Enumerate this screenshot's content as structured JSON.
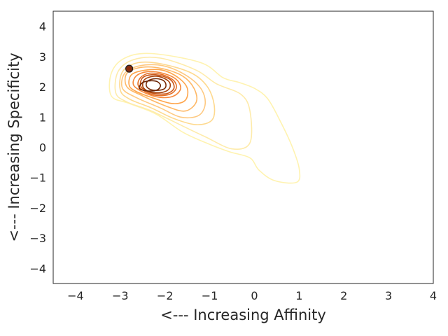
{
  "chart_data": {
    "type": "contour",
    "title": "",
    "xlabel": "<--- Increasing Affinity",
    "ylabel": "<--- Increasing Specificity",
    "xlim": [
      -4.5,
      4.0
    ],
    "ylim": [
      -4.5,
      4.5
    ],
    "xticks": [
      -4,
      -3,
      -2,
      -1,
      0,
      1,
      2,
      3,
      4
    ],
    "yticks": [
      -4,
      -3,
      -2,
      -1,
      0,
      1,
      2,
      3,
      4
    ],
    "xtick_labels": [
      "−4",
      "−3",
      "−2",
      "−1",
      "0",
      "1",
      "2",
      "3",
      "4"
    ],
    "ytick_labels": [
      "−4",
      "−3",
      "−2",
      "−1",
      "0",
      "1",
      "2",
      "3",
      "4"
    ],
    "grid": false,
    "colormap": "YlOrBr",
    "density_mode": [
      -2.38,
      2.03
    ],
    "levels": [
      {
        "level": 1,
        "color": "#fff3b0",
        "points": [
          [
            -3.2,
            1.7
          ],
          [
            -3.2,
            2.45
          ],
          [
            -2.9,
            2.95
          ],
          [
            -2.3,
            3.1
          ],
          [
            -1.2,
            2.8
          ],
          [
            -0.7,
            2.3
          ],
          [
            -0.35,
            2.15
          ],
          [
            0.0,
            1.95
          ],
          [
            0.3,
            1.6
          ],
          [
            0.6,
            0.8
          ],
          [
            0.85,
            0.0
          ],
          [
            1.0,
            -0.7
          ],
          [
            0.95,
            -1.15
          ],
          [
            0.45,
            -1.1
          ],
          [
            0.1,
            -0.75
          ],
          [
            -0.1,
            -0.35
          ],
          [
            -0.55,
            -0.15
          ],
          [
            -1.0,
            0.1
          ],
          [
            -1.6,
            0.5
          ],
          [
            -2.2,
            1.1
          ],
          [
            -2.8,
            1.45
          ]
        ]
      },
      {
        "level": 2,
        "color": "#feebaa",
        "points": [
          [
            -3.1,
            1.8
          ],
          [
            -3.05,
            2.5
          ],
          [
            -2.7,
            2.9
          ],
          [
            -2.1,
            2.95
          ],
          [
            -1.3,
            2.55
          ],
          [
            -0.85,
            2.1
          ],
          [
            -0.3,
            1.75
          ],
          [
            -0.1,
            1.2
          ],
          [
            -0.1,
            0.15
          ],
          [
            -0.5,
            -0.05
          ],
          [
            -1.1,
            0.35
          ],
          [
            -1.6,
            0.7
          ],
          [
            -2.3,
            1.2
          ],
          [
            -2.85,
            1.5
          ]
        ]
      },
      {
        "level": 3,
        "color": "#fed98e",
        "points": [
          [
            -3.0,
            1.9
          ],
          [
            -2.95,
            2.5
          ],
          [
            -2.6,
            2.8
          ],
          [
            -2.05,
            2.75
          ],
          [
            -1.4,
            2.45
          ],
          [
            -1.05,
            2.0
          ],
          [
            -0.9,
            1.4
          ],
          [
            -0.95,
            0.9
          ],
          [
            -1.3,
            0.75
          ],
          [
            -1.8,
            0.95
          ],
          [
            -2.3,
            1.3
          ],
          [
            -2.8,
            1.6
          ]
        ]
      },
      {
        "level": 4,
        "color": "#fec981",
        "points": [
          [
            -2.95,
            1.95
          ],
          [
            -2.9,
            2.45
          ],
          [
            -2.55,
            2.7
          ],
          [
            -2.05,
            2.7
          ],
          [
            -1.55,
            2.4
          ],
          [
            -1.2,
            1.95
          ],
          [
            -1.1,
            1.45
          ],
          [
            -1.25,
            1.05
          ],
          [
            -1.65,
            1.0
          ],
          [
            -2.1,
            1.3
          ],
          [
            -2.65,
            1.65
          ]
        ]
      },
      {
        "level": 5,
        "color": "#feb866",
        "points": [
          [
            -2.85,
            2.0
          ],
          [
            -2.85,
            2.45
          ],
          [
            -2.5,
            2.65
          ],
          [
            -2.05,
            2.6
          ],
          [
            -1.6,
            2.35
          ],
          [
            -1.35,
            1.95
          ],
          [
            -1.3,
            1.5
          ],
          [
            -1.55,
            1.2
          ],
          [
            -1.95,
            1.35
          ],
          [
            -2.5,
            1.7
          ]
        ]
      },
      {
        "level": 6,
        "color": "#fea54b",
        "points": [
          [
            -2.8,
            2.05
          ],
          [
            -2.75,
            2.4
          ],
          [
            -2.45,
            2.55
          ],
          [
            -2.05,
            2.55
          ],
          [
            -1.7,
            2.3
          ],
          [
            -1.5,
            1.95
          ],
          [
            -1.55,
            1.55
          ],
          [
            -1.85,
            1.45
          ],
          [
            -2.3,
            1.65
          ],
          [
            -2.65,
            1.85
          ]
        ]
      },
      {
        "level": 7,
        "color": "#f6883a",
        "points": [
          [
            -2.7,
            2.05
          ],
          [
            -2.65,
            2.35
          ],
          [
            -2.4,
            2.5
          ],
          [
            -2.05,
            2.45
          ],
          [
            -1.75,
            2.25
          ],
          [
            -1.65,
            1.95
          ],
          [
            -1.8,
            1.7
          ],
          [
            -2.1,
            1.65
          ],
          [
            -2.45,
            1.8
          ]
        ]
      },
      {
        "level": 8,
        "color": "#e46f26",
        "points": [
          [
            -2.6,
            2.05
          ],
          [
            -2.55,
            2.3
          ],
          [
            -2.35,
            2.45
          ],
          [
            -2.05,
            2.4
          ],
          [
            -1.8,
            2.2
          ],
          [
            -1.75,
            1.95
          ],
          [
            -1.9,
            1.75
          ],
          [
            -2.2,
            1.72
          ],
          [
            -2.45,
            1.85
          ]
        ]
      },
      {
        "level": 9,
        "color": "#c95618",
        "points": [
          [
            -2.55,
            2.05
          ],
          [
            -2.5,
            2.3
          ],
          [
            -2.3,
            2.4
          ],
          [
            -2.05,
            2.35
          ],
          [
            -1.85,
            2.2
          ],
          [
            -1.8,
            1.95
          ],
          [
            -1.95,
            1.78
          ],
          [
            -2.25,
            1.78
          ],
          [
            -2.45,
            1.9
          ]
        ]
      },
      {
        "level": 10,
        "color": "#a6420d",
        "points": [
          [
            -2.5,
            2.05
          ],
          [
            -2.45,
            2.25
          ],
          [
            -2.25,
            2.35
          ],
          [
            -2.05,
            2.3
          ],
          [
            -1.9,
            2.15
          ],
          [
            -1.9,
            1.95
          ],
          [
            -2.05,
            1.82
          ],
          [
            -2.3,
            1.82
          ],
          [
            -2.45,
            1.92
          ]
        ]
      },
      {
        "level": 11,
        "color": "#7a2b06",
        "points": [
          [
            -2.42,
            2.05
          ],
          [
            -2.38,
            2.2
          ],
          [
            -2.22,
            2.27
          ],
          [
            -2.05,
            2.22
          ],
          [
            -1.98,
            2.08
          ],
          [
            -2.02,
            1.93
          ],
          [
            -2.2,
            1.88
          ],
          [
            -2.35,
            1.93
          ]
        ]
      },
      {
        "level": 12,
        "color": "#6b2505",
        "points": [
          [
            -2.58,
            1.98
          ],
          [
            -2.5,
            2.14
          ],
          [
            -2.33,
            2.2
          ],
          [
            -2.17,
            2.17
          ],
          [
            -2.1,
            2.04
          ],
          [
            -2.17,
            1.9
          ],
          [
            -2.35,
            1.86
          ],
          [
            -2.52,
            1.9
          ]
        ]
      }
    ],
    "marker": {
      "x": -2.8,
      "y": 2.6,
      "fill": "#8b2e0b",
      "stroke": "#222222"
    }
  }
}
